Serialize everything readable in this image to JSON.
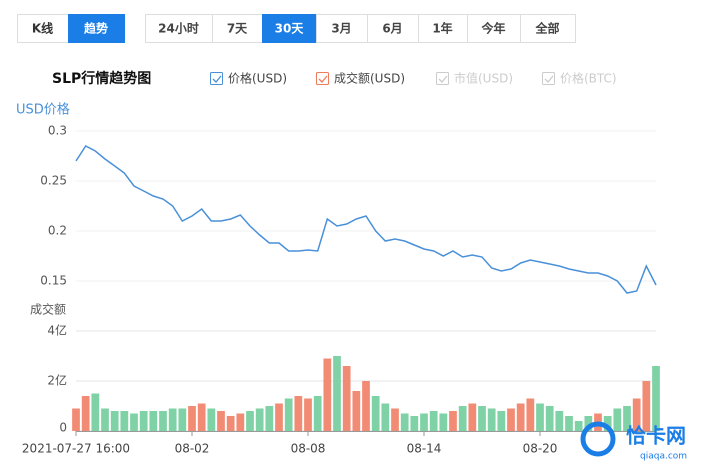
{
  "controls": {
    "view_tabs": [
      "K线",
      "趋势"
    ],
    "active_view": 1,
    "range_tabs": [
      "24小时",
      "7天",
      "30天",
      "3月",
      "6月",
      "1年",
      "今年",
      "全部"
    ],
    "active_range": 2,
    "active_color": "#1a7ee6"
  },
  "title": "SLP行情趋势图",
  "legend": [
    {
      "label": "价格(USD)",
      "color": "#4a90d9",
      "enabled": true
    },
    {
      "label": "成交额(USD)",
      "color": "#f07c5a",
      "enabled": true
    },
    {
      "label": "市值(USD)",
      "color": "#cccccc",
      "enabled": false
    },
    {
      "label": "价格(BTC)",
      "color": "#cccccc",
      "enabled": false
    }
  ],
  "watermark": {
    "text": "恰卡网",
    "url": "qiaqa.com"
  },
  "chart_data": [
    {
      "type": "line",
      "ylabel": "USD价格",
      "color": "#4a90d9",
      "xlim": [
        0,
        60
      ],
      "ylim": [
        0.1,
        0.3
      ],
      "yticks": [
        0.3,
        0.25,
        0.2,
        0.15
      ],
      "grid": true,
      "values": [
        0.27,
        0.285,
        0.28,
        0.272,
        0.265,
        0.258,
        0.245,
        0.24,
        0.235,
        0.232,
        0.225,
        0.21,
        0.215,
        0.222,
        0.21,
        0.21,
        0.212,
        0.216,
        0.205,
        0.196,
        0.188,
        0.188,
        0.18,
        0.18,
        0.181,
        0.18,
        0.212,
        0.205,
        0.207,
        0.212,
        0.215,
        0.2,
        0.19,
        0.192,
        0.19,
        0.186,
        0.182,
        0.18,
        0.175,
        0.18,
        0.174,
        0.176,
        0.174,
        0.163,
        0.16,
        0.162,
        0.168,
        0.171,
        0.169,
        0.167,
        0.165,
        0.162,
        0.16,
        0.158,
        0.158,
        0.155,
        0.15,
        0.138,
        0.14,
        0.165,
        0.146
      ]
    },
    {
      "type": "bar",
      "ylabel": "成交额",
      "up_color": "#f28b74",
      "down_color": "#7fd1a6",
      "xlim": [
        0,
        60
      ],
      "ylim": [
        0,
        4
      ],
      "yticks": [
        {
          "value": 4,
          "label": "4亿"
        },
        {
          "value": 2,
          "label": "2亿"
        },
        0
      ],
      "xticks": [
        {
          "value": 0,
          "label": "2021-07-27 16:00"
        },
        {
          "value": 12,
          "label": "08-02"
        },
        {
          "value": 24,
          "label": "08-08"
        },
        {
          "value": 36,
          "label": "08-14"
        },
        {
          "value": 48,
          "label": "08-20"
        }
      ],
      "values": [
        0.9,
        1.4,
        1.5,
        0.9,
        0.8,
        0.8,
        0.7,
        0.8,
        0.8,
        0.8,
        0.9,
        0.9,
        1.0,
        1.1,
        0.9,
        0.8,
        0.6,
        0.7,
        0.8,
        0.9,
        1.0,
        1.1,
        1.3,
        1.4,
        1.3,
        1.4,
        2.9,
        3.0,
        2.6,
        1.6,
        2.0,
        1.4,
        1.1,
        0.9,
        0.7,
        0.6,
        0.7,
        0.8,
        0.7,
        0.8,
        1.0,
        1.1,
        1.0,
        0.9,
        0.8,
        0.9,
        1.1,
        1.3,
        1.1,
        1.0,
        0.8,
        0.6,
        0.4,
        0.6,
        0.7,
        0.6,
        0.9,
        1.0,
        1.3,
        2.0,
        2.6
      ]
    }
  ]
}
